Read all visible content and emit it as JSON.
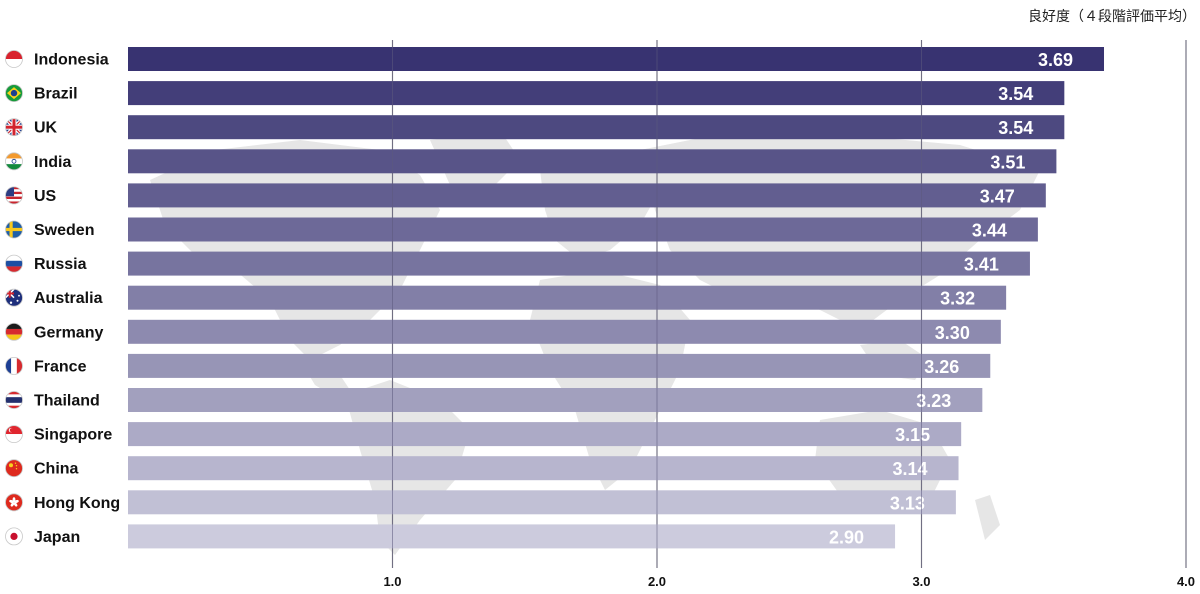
{
  "chart_data": {
    "type": "bar",
    "orientation": "horizontal",
    "unit_label": "良好度（４段階評価平均）",
    "categories": [
      "Indonesia",
      "Brazil",
      "UK",
      "India",
      "US",
      "Sweden",
      "Russia",
      "Australia",
      "Germany",
      "France",
      "Thailand",
      "Singapore",
      "China",
      "Hong Kong",
      "Japan"
    ],
    "values": [
      3.69,
      3.54,
      3.54,
      3.51,
      3.47,
      3.44,
      3.41,
      3.32,
      3.3,
      3.26,
      3.23,
      3.15,
      3.14,
      3.13,
      2.9
    ],
    "value_labels": [
      "3.69",
      "3.54",
      "3.54",
      "3.51",
      "3.47",
      "3.44",
      "3.41",
      "3.32",
      "3.30",
      "3.26",
      "3.23",
      "3.15",
      "3.14",
      "3.13",
      "2.90"
    ],
    "flag_icons": [
      "indonesia-flag-icon",
      "brazil-flag-icon",
      "uk-flag-icon",
      "india-flag-icon",
      "us-flag-icon",
      "sweden-flag-icon",
      "russia-flag-icon",
      "australia-flag-icon",
      "germany-flag-icon",
      "france-flag-icon",
      "thailand-flag-icon",
      "singapore-flag-icon",
      "china-flag-icon",
      "hong-kong-flag-icon",
      "japan-flag-icon"
    ],
    "xlim": [
      0,
      4.0
    ],
    "xticks": [
      1.0,
      2.0,
      3.0,
      4.0
    ],
    "xtick_labels": [
      "1.0",
      "2.0",
      "3.0",
      "4.0"
    ],
    "grid": true,
    "bar_color_start": "#383371",
    "bar_color_end": "#cccbdd",
    "background_image": "world-map"
  }
}
